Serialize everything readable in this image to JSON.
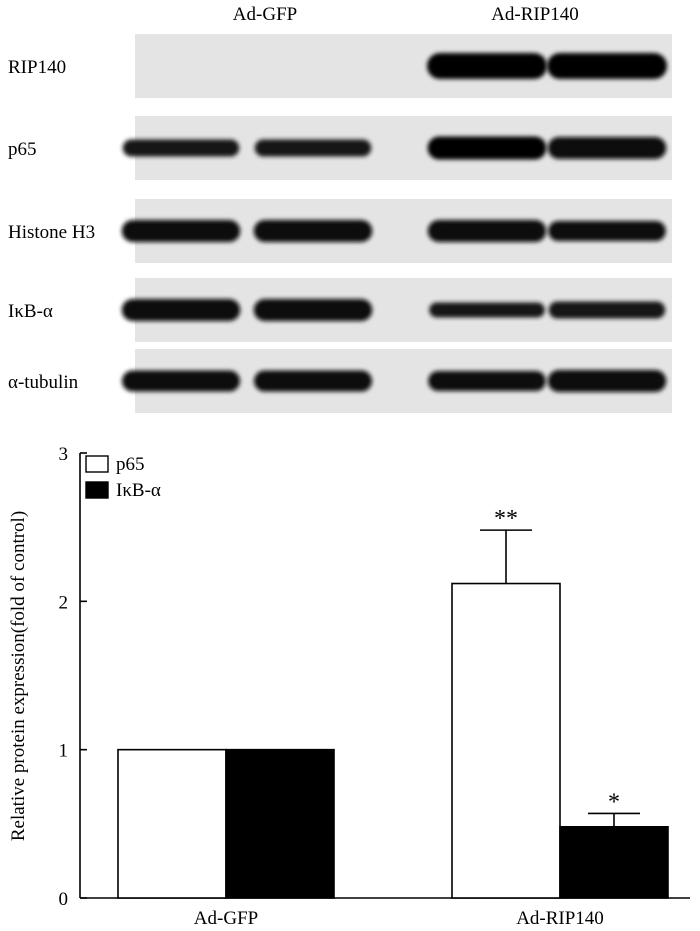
{
  "blot": {
    "group_labels": [
      "Ad-GFP",
      "Ad-RIP140"
    ],
    "rows": [
      {
        "label": "RIP140",
        "intensity": [
          0,
          0,
          1.0,
          1.0
        ]
      },
      {
        "label": "p65",
        "intensity": [
          0.55,
          0.55,
          0.85,
          0.8
        ]
      },
      {
        "label": "Histone H3",
        "intensity": [
          0.8,
          0.8,
          0.8,
          0.7
        ]
      },
      {
        "label": "IκB-α",
        "intensity": [
          0.8,
          0.8,
          0.45,
          0.55
        ]
      },
      {
        "label": "α-tubulin",
        "intensity": [
          0.75,
          0.75,
          0.7,
          0.8
        ]
      }
    ]
  },
  "chart_data": {
    "type": "bar",
    "categories": [
      "Ad-GFP",
      "Ad-RIP140"
    ],
    "series": [
      {
        "name": "p65",
        "values": [
          1.0,
          2.12
        ],
        "errors": [
          0,
          0.36
        ],
        "significance": [
          "",
          "**"
        ],
        "color": "#ffffff"
      },
      {
        "name": "IκB-α",
        "values": [
          1.0,
          0.48
        ],
        "errors": [
          0,
          0.09
        ],
        "significance": [
          "",
          "*"
        ],
        "color": "#000000"
      }
    ],
    "ylabel": "Relative protein expression(fold of control)",
    "ylim": [
      0,
      3
    ],
    "yticks": [
      "0",
      "1",
      "2",
      "3"
    ],
    "legend_position": "top-left",
    "grid": false
  }
}
